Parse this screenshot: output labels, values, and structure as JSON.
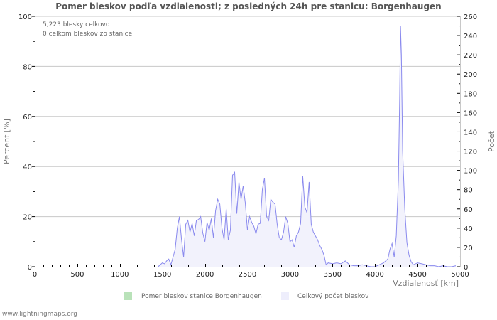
{
  "title": "Pomer bleskov podľa vzdialenosti; z posledných 24h pre stanicu: Borgenhaugen",
  "info": {
    "line1": "5,223 blesky celkovo",
    "line2": "0 celkom bleskov zo stanice"
  },
  "legend": [
    {
      "label": "Pomer bleskov stanice Borgenhaugen",
      "color": "#b9e2b9"
    },
    {
      "label": "Celkový počet bleskov",
      "color": "#eeeefc"
    }
  ],
  "footer": "www.lightningmaps.org",
  "colors": {
    "line": "#8a8aee",
    "fill": "#f2f2fc",
    "grid": "#c8c8c8",
    "axis": "#c8c8c8"
  },
  "chart_data": {
    "type": "area",
    "title": "Pomer bleskov podľa vzdialenosti; z posledných 24h pre stanicu: Borgenhaugen",
    "xlabel": "Vzdialenosť   [km]",
    "ylabel_left": "Percent   [%]",
    "ylabel_right": "Počet",
    "xlim": [
      0,
      5000
    ],
    "ylim_left": [
      0,
      100
    ],
    "ylim_right": [
      0,
      260
    ],
    "x_ticks": [
      "0",
      "500",
      "1000",
      "1500",
      "2000",
      "2500",
      "3000",
      "3500",
      "4000",
      "4500",
      "5000"
    ],
    "y_ticks_left": [
      "0",
      "20",
      "40",
      "60",
      "80",
      "100"
    ],
    "y_ticks_right": [
      "0",
      "20",
      "40",
      "60",
      "80",
      "100",
      "120",
      "140",
      "160",
      "180",
      "200",
      "220",
      "240",
      "260"
    ],
    "grid": true,
    "legend_position": "bottom",
    "series": [
      {
        "name": "Pomer bleskov stanice Borgenhaugen",
        "axis": "left",
        "x": [],
        "values": []
      },
      {
        "name": "Celkový počet bleskov",
        "axis": "right",
        "x": [
          1450,
          1475,
          1500,
          1525,
          1550,
          1575,
          1600,
          1625,
          1650,
          1675,
          1700,
          1725,
          1750,
          1775,
          1800,
          1825,
          1850,
          1875,
          1900,
          1925,
          1950,
          1975,
          2000,
          2025,
          2050,
          2075,
          2100,
          2125,
          2150,
          2175,
          2200,
          2225,
          2250,
          2275,
          2300,
          2325,
          2350,
          2375,
          2400,
          2425,
          2450,
          2475,
          2500,
          2525,
          2550,
          2575,
          2600,
          2625,
          2650,
          2675,
          2700,
          2725,
          2750,
          2775,
          2800,
          2825,
          2850,
          2875,
          2900,
          2925,
          2950,
          2975,
          3000,
          3025,
          3050,
          3075,
          3100,
          3125,
          3150,
          3175,
          3200,
          3225,
          3250,
          3275,
          3300,
          3325,
          3350,
          3375,
          3400,
          3425,
          3450,
          3500,
          3550,
          3600,
          3650,
          3700,
          3750,
          3800,
          3850,
          3900,
          3950,
          4000,
          4050,
          4100,
          4150,
          4175,
          4200,
          4225,
          4250,
          4275,
          4290,
          4300,
          4310,
          4325,
          4350,
          4375,
          4400,
          4425,
          4450,
          4500,
          4550,
          4600,
          4650,
          4700,
          4750,
          4800,
          4850,
          4900,
          4950
        ],
        "values": [
          0,
          2,
          4,
          3,
          6,
          8,
          2,
          10,
          18,
          40,
          52,
          28,
          10,
          44,
          48,
          36,
          45,
          32,
          48,
          49,
          52,
          35,
          26,
          46,
          38,
          50,
          30,
          58,
          70,
          65,
          40,
          28,
          60,
          28,
          38,
          95,
          98,
          55,
          88,
          70,
          84,
          66,
          38,
          52,
          46,
          42,
          34,
          44,
          45,
          80,
          92,
          52,
          48,
          70,
          67,
          65,
          44,
          30,
          28,
          36,
          52,
          45,
          26,
          28,
          20,
          32,
          36,
          45,
          94,
          62,
          56,
          88,
          44,
          36,
          32,
          28,
          22,
          18,
          12,
          2,
          4,
          3,
          4,
          3,
          6,
          2,
          1,
          1,
          2,
          1,
          0,
          0,
          2,
          4,
          8,
          18,
          24,
          10,
          32,
          90,
          175,
          250,
          220,
          120,
          60,
          25,
          12,
          5,
          2,
          4,
          3,
          2,
          1,
          1,
          0,
          1,
          0,
          0,
          1
        ]
      }
    ]
  }
}
